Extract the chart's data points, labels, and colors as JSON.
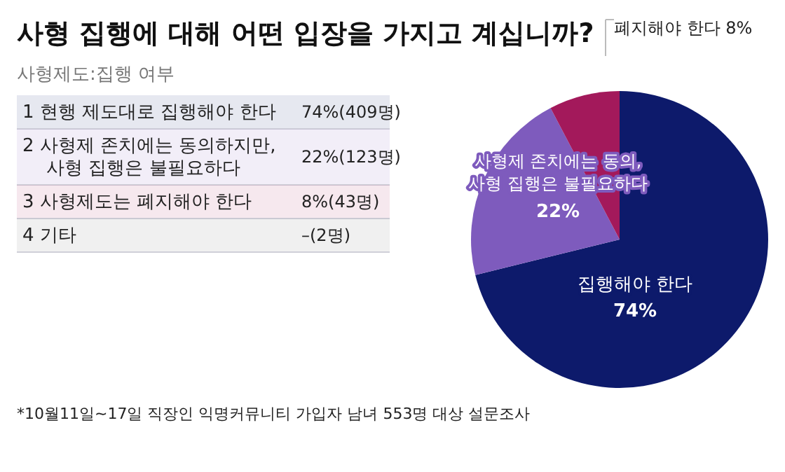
{
  "chart_data": [
    {
      "type": "pie",
      "title": "사형 집행에 대해 어떤 입장을 가지고 계십니까?",
      "categories": [
        "집행해야 한다",
        "사형제 존치에는 동의,\n사형 집행은 불필요하다",
        "폐지해야 한다"
      ],
      "values": [
        74,
        22,
        8
      ],
      "value_labels": [
        "74%",
        "22%",
        "8%"
      ],
      "colors": [
        "#0d1a6b",
        "#7e5bbd",
        "#a3195b"
      ],
      "annotations": [
        "*10월11일~17일 직장인 익명커뮤니티 가입자 남녀 553명 대상 설문조사"
      ]
    },
    {
      "type": "other",
      "title": "사형제도:집행 여부",
      "annotations": [
        "1",
        "현행 제도대로 집행해야 한다",
        "74%(409명)",
        "2",
        "사형제 존치에는 동의하지만,\n사형 집행은 불필요하다",
        "22%(123명)",
        "3",
        "사형제도는 폐지해야 한다",
        "8%(43명)",
        "4",
        "기타",
        "–(2명)"
      ],
      "colors": [
        "#0d1a6b",
        "#7e5bbd",
        "#a3195b",
        "#6e6e6e"
      ]
    }
  ]
}
